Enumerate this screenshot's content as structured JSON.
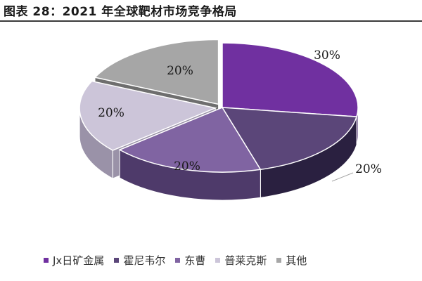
{
  "figure": {
    "title": "图表 28：2021 年全球靶材市场竞争格局"
  },
  "chart_data": {
    "type": "pie",
    "style": "3d-exploded",
    "title": "",
    "slices": [
      {
        "name": "Jx日矿金属",
        "value": 30,
        "label": "30%",
        "color": "#7030a0",
        "side_color": "#3a1860"
      },
      {
        "name": "霍尼韦尔",
        "value": 20,
        "label": "20%",
        "color": "#5b4679",
        "side_color": "#2a2040"
      },
      {
        "name": "东曹",
        "value": 20,
        "label": "20%",
        "color": "#8064a2",
        "side_color": "#4e3a6a"
      },
      {
        "name": "普莱克斯",
        "value": 20,
        "label": "20%",
        "color": "#ccc5d9",
        "side_color": "#9a92a8"
      },
      {
        "name": "其他",
        "value": 20,
        "label": "20%",
        "color": "#a6a6a6",
        "side_color": "#6e6e6e"
      }
    ],
    "legend_position": "bottom"
  }
}
